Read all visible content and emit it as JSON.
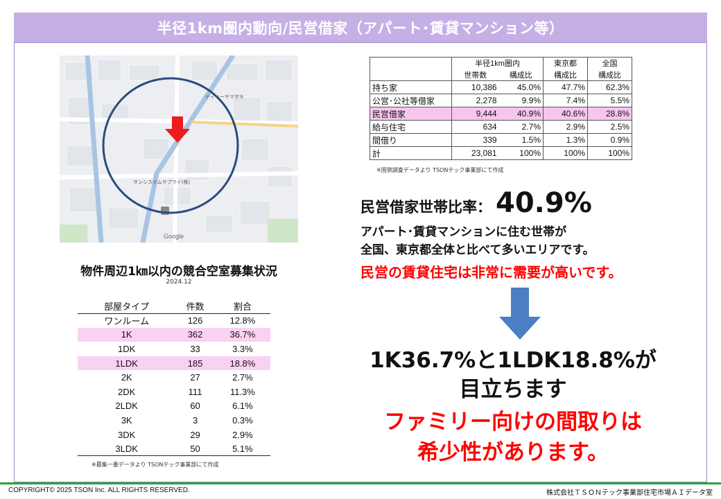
{
  "title": "半径1km圏内動向/民営借家（アパート･賃貸マンション等）",
  "map": {
    "labels": [
      "Google",
      "サンシステムサプライ(株)",
      "デイリーヤマザキ"
    ],
    "colors": {
      "circle": "#2b4a7e",
      "arrow": "#ee1c1c",
      "road": "#a8c4e3",
      "bg": "#eef0f2"
    }
  },
  "household_table": {
    "group_headers": [
      "半径1km圏内",
      "東京都",
      "全国"
    ],
    "sub_headers": [
      "世帯数",
      "構成比",
      "構成比",
      "構成比"
    ],
    "rows": [
      {
        "label": "持ち家",
        "count": "10,386",
        "share": "45.0%",
        "tokyo": "47.7%",
        "national": "62.3%",
        "highlight": false
      },
      {
        "label": "公営･公社等借家",
        "count": "2,278",
        "share": "9.9%",
        "tokyo": "7.4%",
        "national": "5.5%",
        "highlight": false
      },
      {
        "label": "民営借家",
        "count": "9,444",
        "share": "40.9%",
        "tokyo": "40.6%",
        "national": "28.8%",
        "highlight": true
      },
      {
        "label": "給与住宅",
        "count": "634",
        "share": "2.7%",
        "tokyo": "2.9%",
        "national": "2.5%",
        "highlight": false
      },
      {
        "label": "間借り",
        "count": "339",
        "share": "1.5%",
        "tokyo": "1.3%",
        "national": "0.9%",
        "highlight": false
      },
      {
        "label": "計",
        "count": "23,081",
        "share": "100%",
        "tokyo": "100%",
        "national": "100%",
        "highlight": false
      }
    ],
    "source": "※国勢調査データより TSONテック事業部にて作成"
  },
  "competition": {
    "title": "物件周辺1㎞以内の競合空室募集状況",
    "date": "2024.12",
    "headers": [
      "部屋タイプ",
      "件数",
      "割合"
    ],
    "rows": [
      {
        "type": "ワンルーム",
        "count": "126",
        "ratio": "12.8%",
        "highlight": false
      },
      {
        "type": "1K",
        "count": "362",
        "ratio": "36.7%",
        "highlight": true
      },
      {
        "type": "1DK",
        "count": "33",
        "ratio": "3.3%",
        "highlight": false
      },
      {
        "type": "1LDK",
        "count": "185",
        "ratio": "18.8%",
        "highlight": true
      },
      {
        "type": "2K",
        "count": "27",
        "ratio": "2.7%",
        "highlight": false
      },
      {
        "type": "2DK",
        "count": "111",
        "ratio": "11.3%",
        "highlight": false
      },
      {
        "type": "2LDK",
        "count": "60",
        "ratio": "6.1%",
        "highlight": false
      },
      {
        "type": "3K",
        "count": "3",
        "ratio": "0.3%",
        "highlight": false
      },
      {
        "type": "3DK",
        "count": "29",
        "ratio": "2.9%",
        "highlight": false
      },
      {
        "type": "3LDK",
        "count": "50",
        "ratio": "5.1%",
        "highlight": false
      }
    ],
    "source": "※募集一番データより TSONテック事業部にて作成"
  },
  "summary": {
    "ratio_label": "民営借家世帯比率：",
    "ratio_value": "40.9%",
    "line1": "アパート･賃貸マンションに住む世帯が",
    "line2": "全国、東京都全体と比べて多いエリアです。",
    "line3": "民営の賃貸住宅は非常に需要が高いです。"
  },
  "conclusion": {
    "line1": "1K36.7%と1LDK18.8%が",
    "line2": "目立ちます",
    "line3": "ファミリー向けの間取りは",
    "line4": "希少性があります。"
  },
  "footer": {
    "copyright": "COPYRIGHT© 2025 TSON Inc. ALL RIGHTS RESERVED.",
    "department": "株式会社ＴＳＯＮテック事業部住宅市場ＡＩデータ室"
  },
  "colors": {
    "title_bg": "#c5b0e6",
    "highlight": "#f7c6ef",
    "red": "#ff0000",
    "arrow_blue": "#4a7fc4",
    "footer_green": "#27a33a"
  }
}
